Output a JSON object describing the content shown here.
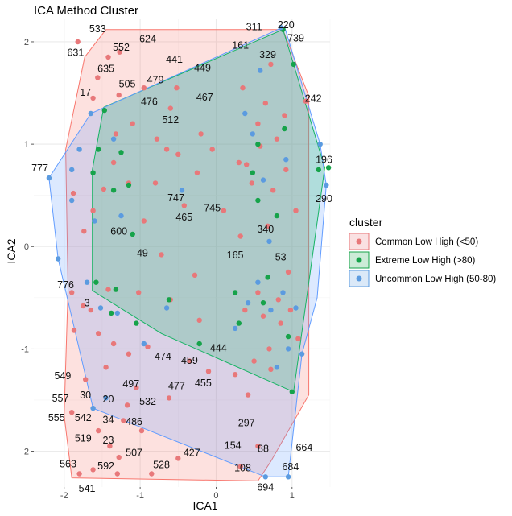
{
  "chart_data": {
    "type": "scatter",
    "title": "ICA Method Cluster",
    "xlabel": "ICA1",
    "ylabel": "ICA2",
    "xlim": [
      -2.4,
      1.5
    ],
    "ylim": [
      -2.35,
      2.22
    ],
    "xticks": [
      -2,
      -1,
      0,
      1
    ],
    "yticks": [
      -2,
      -1,
      0,
      1,
      2
    ],
    "x_tick_labels": [
      "-2",
      "-1",
      "0",
      "1"
    ],
    "y_tick_labels": [
      "-2",
      "-1",
      "0",
      "1",
      "2"
    ],
    "grid": true,
    "legend": {
      "title": "cluster",
      "placement": "right",
      "entries": [
        {
          "name": "Common Low High (<50)",
          "color": "#E8787A"
        },
        {
          "name": "Extreme Low High (>80)",
          "color": "#16A34A"
        },
        {
          "name": "Uncommon Low High (50-80)",
          "color": "#5B9BE0"
        }
      ]
    },
    "hulls": [
      {
        "series": "Common Low High (<50)",
        "color": "#F8766D",
        "points": [
          [
            -1.45,
            2.12
          ],
          [
            0.88,
            2.12
          ],
          [
            1.22,
            1.47
          ],
          [
            1.22,
            -1.45
          ],
          [
            0.72,
            -2.1
          ],
          [
            0.55,
            -2.29
          ],
          [
            -1.9,
            -2.26
          ],
          [
            -2.0,
            -1.65
          ],
          [
            -1.95,
            -0.42
          ],
          [
            -1.98,
            0.95
          ],
          [
            -1.73,
            1.85
          ]
        ]
      },
      {
        "series": "Extreme Low High (>80)",
        "color": "#00BA38",
        "points": [
          [
            -1.48,
            1.36
          ],
          [
            0.88,
            2.12
          ],
          [
            1.02,
            1.78
          ],
          [
            1.43,
            0.77
          ],
          [
            1.02,
            -1.42
          ],
          [
            -0.72,
            -0.85
          ],
          [
            -1.63,
            -0.43
          ],
          [
            -1.63,
            0.75
          ]
        ]
      },
      {
        "series": "Uncommon Low High (50-80)",
        "color": "#619CFF",
        "points": [
          [
            -2.2,
            0.67
          ],
          [
            -1.65,
            1.3
          ],
          [
            0.9,
            2.15
          ],
          [
            1.37,
            1.0
          ],
          [
            1.45,
            0.6
          ],
          [
            1.33,
            -0.5
          ],
          [
            1.13,
            -1.05
          ],
          [
            0.95,
            -2.25
          ],
          [
            0.65,
            -2.25
          ],
          [
            -1.62,
            -1.58
          ],
          [
            -2.08,
            -0.12
          ]
        ]
      }
    ],
    "points": {
      "Common Low High (<50)": [
        [
          -1.82,
          2.0
        ],
        [
          -1.56,
          1.65
        ],
        [
          -1.42,
          1.85
        ],
        [
          -1.27,
          1.9
        ],
        [
          -0.95,
          1.55
        ],
        [
          -0.6,
          1.35
        ],
        [
          -1.1,
          1.2
        ],
        [
          -0.5,
          0.9
        ],
        [
          -1.35,
          0.82
        ],
        [
          -0.8,
          0.62
        ],
        [
          -0.2,
          1.1
        ],
        [
          -0.52,
          1.55
        ],
        [
          0.65,
          1.4
        ],
        [
          0.8,
          1.05
        ],
        [
          0.92,
          0.75
        ],
        [
          0.4,
          0.8
        ],
        [
          0.75,
          0.55
        ],
        [
          0.32,
          0.1
        ],
        [
          0.55,
          -0.45
        ],
        [
          0.85,
          -0.75
        ],
        [
          1.08,
          -0.9
        ],
        [
          0.5,
          -1.12
        ],
        [
          0.25,
          -1.25
        ],
        [
          0.82,
          -0.52
        ],
        [
          -1.9,
          -0.45
        ],
        [
          -1.75,
          -0.58
        ],
        [
          -1.55,
          -0.85
        ],
        [
          -1.35,
          -0.95
        ],
        [
          -1.15,
          -1.05
        ],
        [
          -1.45,
          -1.18
        ],
        [
          -1.72,
          -1.3
        ],
        [
          -1.9,
          -1.62
        ],
        [
          -1.55,
          -1.8
        ],
        [
          -1.4,
          -1.95
        ],
        [
          -1.28,
          -2.06
        ],
        [
          -1.8,
          -2.22
        ],
        [
          -1.62,
          -2.18
        ],
        [
          -1.3,
          -2.22
        ],
        [
          -0.85,
          -2.22
        ],
        [
          -0.5,
          -2.07
        ],
        [
          -1.17,
          -1.55
        ],
        [
          -1.05,
          -1.38
        ],
        [
          -0.9,
          -0.98
        ],
        [
          -0.35,
          -1.12
        ],
        [
          -0.1,
          -1.22
        ],
        [
          0.32,
          -2.15
        ],
        [
          0.55,
          -1.95
        ],
        [
          -0.62,
          -1.48
        ],
        [
          -1.22,
          -1.7
        ],
        [
          -0.98,
          -1.8
        ],
        [
          -1.87,
          -0.82
        ],
        [
          -1.65,
          -0.62
        ],
        [
          -1.42,
          -0.42
        ],
        [
          -1.02,
          -0.45
        ],
        [
          -0.72,
          -0.08
        ],
        [
          -0.28,
          -0.28
        ],
        [
          0.1,
          0.35
        ],
        [
          -1.62,
          0.35
        ],
        [
          -1.88,
          0.52
        ],
        [
          -1.74,
          0.15
        ],
        [
          -1.48,
          0.56
        ],
        [
          -0.95,
          0.25
        ],
        [
          -0.6,
          -0.52
        ],
        [
          0.38,
          -0.62
        ],
        [
          0.62,
          -0.68
        ],
        [
          0.7,
          -1.0
        ],
        [
          0.98,
          -0.62
        ],
        [
          0.35,
          1.55
        ],
        [
          0.55,
          1.2
        ],
        [
          0.72,
          1.78
        ],
        [
          0.9,
          1.28
        ],
        [
          0.47,
          0.62
        ],
        [
          0.3,
          0.82
        ],
        [
          0.58,
          0.98
        ],
        [
          -0.25,
          0.72
        ],
        [
          -0.42,
          0.4
        ],
        [
          -0.78,
          1.05
        ],
        [
          -1.28,
          1.48
        ],
        [
          -1.62,
          1.45
        ],
        [
          -1.32,
          1.1
        ],
        [
          -1.15,
          0.62
        ],
        [
          -0.65,
          0.95
        ],
        [
          0.68,
          0.2
        ],
        [
          0.95,
          -0.25
        ],
        [
          0.72,
          -1.2
        ],
        [
          0.42,
          -1.45
        ],
        [
          -0.22,
          -0.72
        ],
        [
          -0.05,
          0.95
        ],
        [
          1.05,
          0.35
        ],
        [
          1.18,
          1.42
        ]
      ],
      "Extreme Low High (>80)": [
        [
          -1.47,
          1.33
        ],
        [
          -1.58,
          -0.35
        ],
        [
          -1.32,
          -0.42
        ],
        [
          -1.05,
          -0.75
        ],
        [
          -0.22,
          -0.95
        ],
        [
          1.48,
          0.77
        ],
        [
          1.35,
          0.75
        ],
        [
          1.0,
          -1.42
        ],
        [
          0.88,
          2.12
        ],
        [
          1.02,
          1.78
        ],
        [
          0.55,
          1.0
        ],
        [
          0.62,
          -0.55
        ],
        [
          -1.35,
          0.55
        ],
        [
          -1.15,
          0.6
        ],
        [
          -1.55,
          0.95
        ],
        [
          -1.25,
          0.92
        ],
        [
          0.3,
          -0.75
        ],
        [
          -1.1,
          0.12
        ],
        [
          0.8,
          0.3
        ],
        [
          0.95,
          -0.88
        ],
        [
          -1.62,
          0.72
        ],
        [
          0.48,
          0.72
        ],
        [
          0.9,
          1.15
        ],
        [
          0.68,
          -0.3
        ],
        [
          -0.62,
          -0.52
        ],
        [
          0.25,
          -0.45
        ],
        [
          -1.38,
          -0.65
        ],
        [
          0.55,
          0.45
        ]
      ],
      "Uncommon Low High (50-80)": [
        [
          -2.2,
          0.67
        ],
        [
          -1.65,
          1.3
        ],
        [
          0.85,
          2.14
        ],
        [
          1.37,
          1.0
        ],
        [
          1.45,
          0.6
        ],
        [
          1.13,
          -1.05
        ],
        [
          0.95,
          -2.25
        ],
        [
          0.65,
          -2.25
        ],
        [
          -1.62,
          -1.58
        ],
        [
          -2.08,
          -0.12
        ],
        [
          -1.9,
          0.75
        ],
        [
          -1.8,
          0.95
        ],
        [
          -1.6,
          0.25
        ],
        [
          -1.52,
          -0.6
        ],
        [
          -1.3,
          -0.65
        ],
        [
          -0.65,
          -0.6
        ],
        [
          0.55,
          -0.35
        ],
        [
          0.72,
          -0.62
        ],
        [
          0.88,
          -0.45
        ],
        [
          0.95,
          -1.0
        ],
        [
          0.48,
          1.1
        ],
        [
          0.92,
          0.85
        ],
        [
          0.62,
          0.65
        ],
        [
          -0.95,
          -0.95
        ],
        [
          -1.45,
          -1.48
        ],
        [
          0.25,
          -0.8
        ],
        [
          0.38,
          1.3
        ],
        [
          0.58,
          1.72
        ],
        [
          -1.9,
          0.45
        ],
        [
          -1.7,
          -0.35
        ],
        [
          0.8,
          -1.18
        ],
        [
          1.05,
          -0.6
        ],
        [
          -1.35,
          1.05
        ],
        [
          -1.25,
          0.3
        ],
        [
          0.42,
          -0.55
        ],
        [
          0.7,
          0.05
        ],
        [
          -0.45,
          0.55
        ]
      ]
    },
    "annotations": [
      {
        "text": "533",
        "x": -1.56,
        "y": 2.12
      },
      {
        "text": "624",
        "x": -0.9,
        "y": 2.02
      },
      {
        "text": "311",
        "x": 0.5,
        "y": 2.14
      },
      {
        "text": "220",
        "x": 0.92,
        "y": 2.16
      },
      {
        "text": "739",
        "x": 1.05,
        "y": 2.03
      },
      {
        "text": "631",
        "x": -1.85,
        "y": 1.89
      },
      {
        "text": "552",
        "x": -1.25,
        "y": 1.94
      },
      {
        "text": "161",
        "x": 0.32,
        "y": 1.96
      },
      {
        "text": "329",
        "x": 0.68,
        "y": 1.87
      },
      {
        "text": "441",
        "x": -0.55,
        "y": 1.82
      },
      {
        "text": "635",
        "x": -1.45,
        "y": 1.73
      },
      {
        "text": "449",
        "x": -0.18,
        "y": 1.74
      },
      {
        "text": "479",
        "x": -0.8,
        "y": 1.62
      },
      {
        "text": "505",
        "x": -1.17,
        "y": 1.58
      },
      {
        "text": "17",
        "x": -1.72,
        "y": 1.5
      },
      {
        "text": "467",
        "x": -0.15,
        "y": 1.45
      },
      {
        "text": "476",
        "x": -0.88,
        "y": 1.41
      },
      {
        "text": "242",
        "x": 1.28,
        "y": 1.44
      },
      {
        "text": "512",
        "x": -0.6,
        "y": 1.23
      },
      {
        "text": "196",
        "x": 1.42,
        "y": 0.84
      },
      {
        "text": "777",
        "x": -2.32,
        "y": 0.76
      },
      {
        "text": "747",
        "x": -0.53,
        "y": 0.47
      },
      {
        "text": "745",
        "x": -0.05,
        "y": 0.37
      },
      {
        "text": "290",
        "x": 1.42,
        "y": 0.46
      },
      {
        "text": "465",
        "x": -0.42,
        "y": 0.28
      },
      {
        "text": "600",
        "x": -1.28,
        "y": 0.14
      },
      {
        "text": "340",
        "x": 0.65,
        "y": 0.16
      },
      {
        "text": "49",
        "x": -0.97,
        "y": -0.07
      },
      {
        "text": "165",
        "x": 0.25,
        "y": -0.09
      },
      {
        "text": "53",
        "x": 0.85,
        "y": -0.11
      },
      {
        "text": "776",
        "x": -1.98,
        "y": -0.38
      },
      {
        "text": "3",
        "x": -1.7,
        "y": -0.56
      },
      {
        "text": "444",
        "x": 0.03,
        "y": -1.0
      },
      {
        "text": "474",
        "x": -0.7,
        "y": -1.08
      },
      {
        "text": "459",
        "x": -0.35,
        "y": -1.12
      },
      {
        "text": "549",
        "x": -2.02,
        "y": -1.27
      },
      {
        "text": "455",
        "x": -0.17,
        "y": -1.34
      },
      {
        "text": "477",
        "x": -0.52,
        "y": -1.37
      },
      {
        "text": "497",
        "x": -1.12,
        "y": -1.35
      },
      {
        "text": "557",
        "x": -2.05,
        "y": -1.49
      },
      {
        "text": "30",
        "x": -1.72,
        "y": -1.46
      },
      {
        "text": "20",
        "x": -1.42,
        "y": -1.5
      },
      {
        "text": "532",
        "x": -0.9,
        "y": -1.52
      },
      {
        "text": "555",
        "x": -2.1,
        "y": -1.68
      },
      {
        "text": "542",
        "x": -1.75,
        "y": -1.68
      },
      {
        "text": "34",
        "x": -1.42,
        "y": -1.7
      },
      {
        "text": "486",
        "x": -1.08,
        "y": -1.72
      },
      {
        "text": "297",
        "x": 0.4,
        "y": -1.73
      },
      {
        "text": "519",
        "x": -1.75,
        "y": -1.88
      },
      {
        "text": "23",
        "x": -1.42,
        "y": -1.9
      },
      {
        "text": "154",
        "x": 0.22,
        "y": -1.95
      },
      {
        "text": "88",
        "x": 0.62,
        "y": -1.98
      },
      {
        "text": "664",
        "x": 1.16,
        "y": -1.97
      },
      {
        "text": "507",
        "x": -1.08,
        "y": -2.02
      },
      {
        "text": "427",
        "x": -0.32,
        "y": -2.02
      },
      {
        "text": "563",
        "x": -1.95,
        "y": -2.13
      },
      {
        "text": "592",
        "x": -1.45,
        "y": -2.15
      },
      {
        "text": "528",
        "x": -0.72,
        "y": -2.14
      },
      {
        "text": "108",
        "x": 0.35,
        "y": -2.17
      },
      {
        "text": "684",
        "x": 0.98,
        "y": -2.16
      },
      {
        "text": "541",
        "x": -1.7,
        "y": -2.37
      },
      {
        "text": "694",
        "x": 0.65,
        "y": -2.36
      }
    ]
  }
}
